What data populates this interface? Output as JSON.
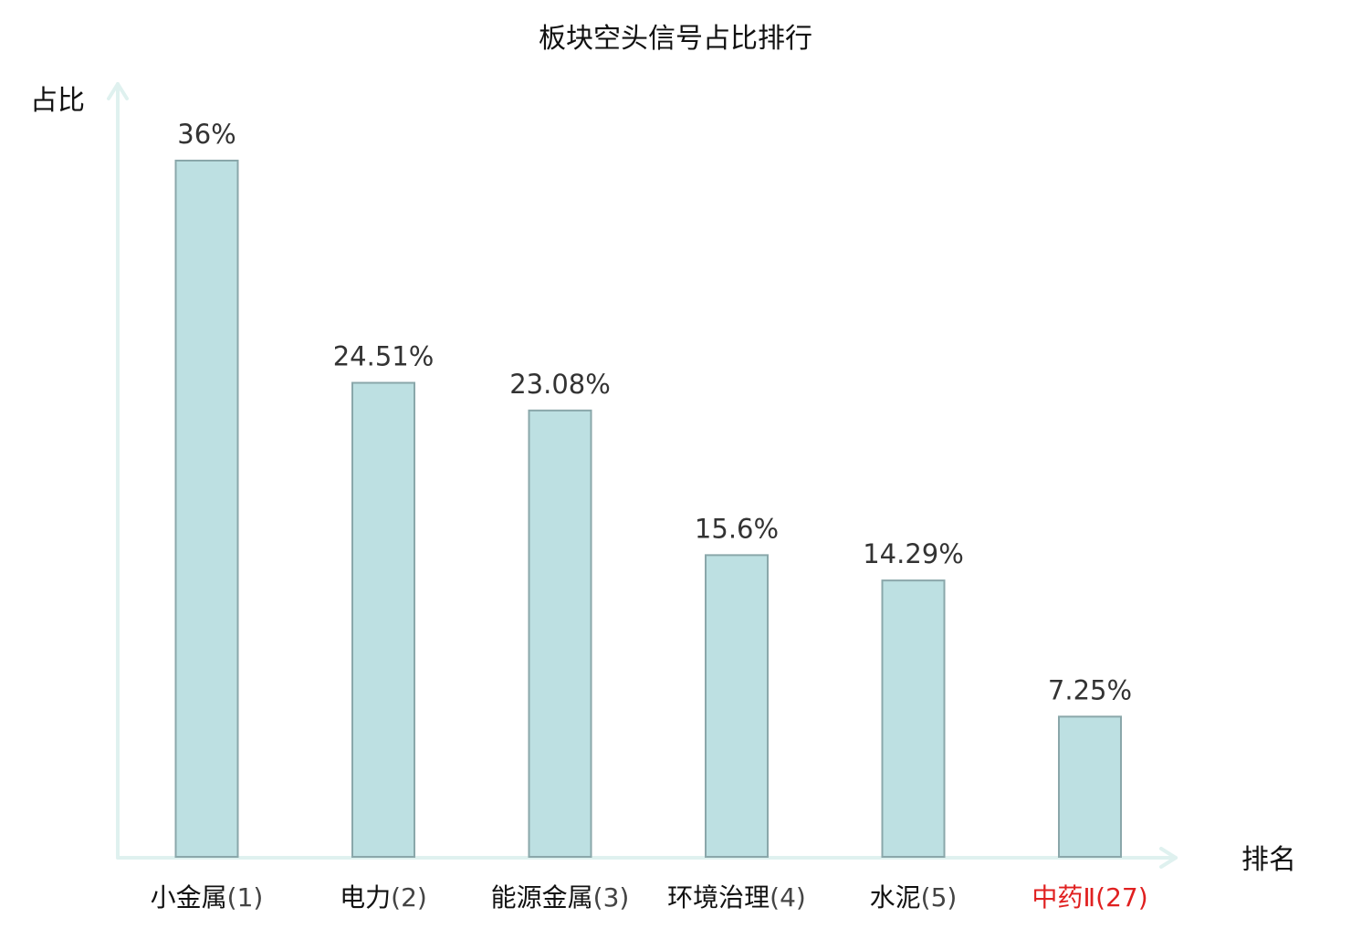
{
  "chart_data": {
    "type": "bar",
    "title": "板块空头信号占比排行",
    "ylabel": "占比",
    "xlabel": "排名",
    "ylim": [
      0,
      36
    ],
    "grid": false,
    "legend": "none",
    "categories": [
      {
        "name": "小金属",
        "rank": "(1)",
        "highlight": false
      },
      {
        "name": "电力",
        "rank": "(2)",
        "highlight": false
      },
      {
        "name": "能源金属",
        "rank": "(3)",
        "highlight": false
      },
      {
        "name": "环境治理",
        "rank": "(4)",
        "highlight": false
      },
      {
        "name": "水泥",
        "rank": "(5)",
        "highlight": false
      },
      {
        "name": "中药Ⅱ",
        "rank": "(27)",
        "highlight": true
      }
    ],
    "values": [
      36,
      24.51,
      23.08,
      15.6,
      14.29,
      7.25
    ],
    "value_labels": [
      "36%",
      "24.51%",
      "23.08%",
      "15.6%",
      "14.29%",
      "7.25%"
    ],
    "colors": {
      "bar_fill": "#bde0e2",
      "bar_stroke": "#8aa7aa",
      "axis": "#dff1ef",
      "name_text": "#111111",
      "rank_text": "#444444",
      "highlight_text": "#e02020"
    }
  }
}
